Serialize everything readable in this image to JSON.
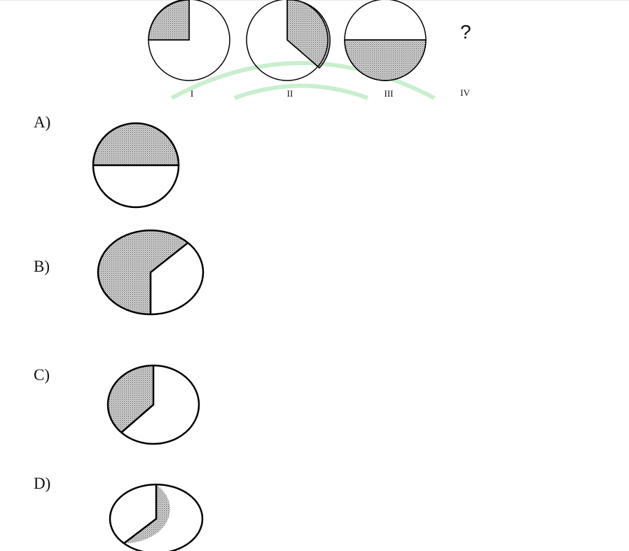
{
  "series": {
    "figure_labels": [
      "I",
      "II",
      "III",
      "IV"
    ],
    "missing_symbol": "?"
  },
  "options": [
    {
      "label": "A)"
    },
    {
      "label": "B)"
    },
    {
      "label": "C)"
    },
    {
      "label": "D)"
    }
  ],
  "watermark": {
    "color": "#c9efce"
  },
  "colors": {
    "stroke": "#000000",
    "shade_fill": "#c8c8c8",
    "shade_dot": "#555555"
  }
}
